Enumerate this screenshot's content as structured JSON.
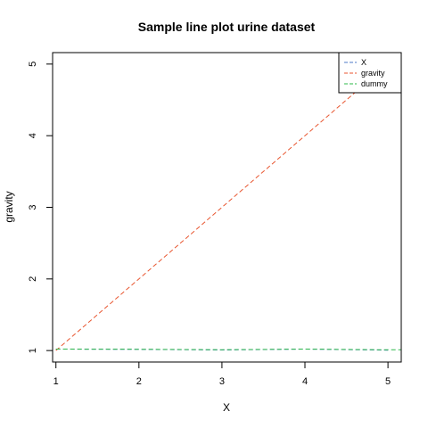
{
  "chart_data": {
    "type": "line",
    "title": "Sample line plot  urine dataset",
    "xlabel": "X",
    "ylabel": "gravity",
    "xlim": [
      0.96,
      5.16
    ],
    "ylim": [
      0.84,
      5.16
    ],
    "x_ticks": [
      "1",
      "2",
      "3",
      "4",
      "5"
    ],
    "y_ticks": [
      "1",
      "2",
      "3",
      "4",
      "5"
    ],
    "legend_position": "top-right",
    "legend": [
      "X",
      "gravity",
      "dummy"
    ],
    "series": [
      {
        "name": "X",
        "color": "#4d7ac7",
        "x": [
          1,
          2,
          3,
          4,
          5
        ],
        "y": [
          1.021,
          1.017,
          1.008,
          1.021,
          1.005
        ]
      },
      {
        "name": "gravity",
        "color": "#e8552f",
        "x": [
          1,
          5
        ],
        "y": [
          1.0,
          5.0
        ]
      },
      {
        "name": "dummy",
        "color": "#2eb84a",
        "x": [
          1,
          2,
          3,
          4,
          5,
          5.16
        ],
        "y": [
          1.02,
          1.018,
          1.012,
          1.02,
          1.01,
          1.011
        ]
      }
    ]
  }
}
